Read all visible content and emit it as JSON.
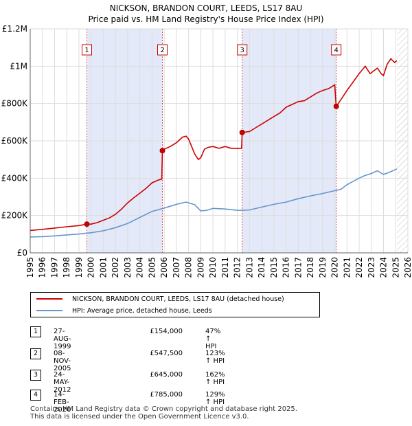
{
  "chart_data": {
    "type": "line",
    "title": "NICKSON, BRANDON COURT, LEEDS, LS17 8AU",
    "subtitle": "Price paid vs. HM Land Registry's House Price Index (HPI)",
    "xlim": [
      1995,
      2026
    ],
    "ylim": [
      0,
      1200000
    ],
    "x_ticks": [
      "1995",
      "1996",
      "1997",
      "1998",
      "1999",
      "2000",
      "2001",
      "2002",
      "2003",
      "2004",
      "2005",
      "2006",
      "2007",
      "2008",
      "2009",
      "2010",
      "2011",
      "2012",
      "2013",
      "2014",
      "2015",
      "2016",
      "2017",
      "2018",
      "2019",
      "2020",
      "2021",
      "2022",
      "2023",
      "2024",
      "2025",
      "2026"
    ],
    "y_ticks": [
      {
        "value": 0,
        "label": "£0"
      },
      {
        "value": 200000,
        "label": "£200K"
      },
      {
        "value": 400000,
        "label": "£400K"
      },
      {
        "value": 600000,
        "label": "£600K"
      },
      {
        "value": 800000,
        "label": "£800K"
      },
      {
        "value": 1000000,
        "label": "£1M"
      },
      {
        "value": 1200000,
        "label": "£1.2M"
      }
    ],
    "grid": true,
    "future_hatch_from": 2025.1,
    "series": [
      {
        "name": "NICKSON, BRANDON COURT, LEEDS, LS17 8AU (detached house)",
        "color": "#cc0000",
        "x": [
          1995.0,
          1996.0,
          1997.0,
          1998.0,
          1999.0,
          1999.65,
          2000.0,
          2000.5,
          2001.0,
          2001.5,
          2002.0,
          2002.5,
          2003.0,
          2003.5,
          2004.0,
          2004.5,
          2005.0,
          2005.5,
          2005.8,
          2005.85,
          2006.0,
          2006.5,
          2007.0,
          2007.5,
          2007.8,
          2008.0,
          2008.5,
          2008.8,
          2009.0,
          2009.3,
          2009.6,
          2010.0,
          2010.5,
          2011.0,
          2011.5,
          2012.0,
          2012.35,
          2012.4,
          2013.0,
          2013.5,
          2014.0,
          2014.5,
          2015.0,
          2015.5,
          2016.0,
          2016.5,
          2017.0,
          2017.5,
          2018.0,
          2018.5,
          2019.0,
          2019.5,
          2020.0,
          2020.1,
          2020.12,
          2020.5,
          2021.0,
          2021.5,
          2022.0,
          2022.5,
          2022.9,
          2023.2,
          2023.5,
          2023.8,
          2024.0,
          2024.3,
          2024.6,
          2024.9,
          2025.1
        ],
        "y": [
          120000,
          126000,
          133000,
          140000,
          146000,
          154000,
          154000,
          162000,
          175000,
          187000,
          207000,
          235000,
          268000,
          295000,
          320000,
          345000,
          375000,
          390000,
          395000,
          547500,
          555000,
          570000,
          590000,
          620000,
          625000,
          610000,
          530000,
          500000,
          510000,
          555000,
          565000,
          570000,
          560000,
          570000,
          560000,
          560000,
          560000,
          645000,
          650000,
          670000,
          690000,
          710000,
          730000,
          750000,
          780000,
          795000,
          810000,
          815000,
          835000,
          855000,
          870000,
          880000,
          900000,
          800000,
          785000,
          820000,
          870000,
          915000,
          960000,
          1000000,
          960000,
          975000,
          990000,
          960000,
          950000,
          1010000,
          1040000,
          1020000,
          1030000
        ]
      },
      {
        "name": "HPI: Average price, detached house, Leeds",
        "color": "#6495cd",
        "x": [
          1995.0,
          1996.0,
          1997.0,
          1998.0,
          1999.0,
          2000.0,
          2001.0,
          2002.0,
          2003.0,
          2004.0,
          2005.0,
          2006.0,
          2007.0,
          2007.8,
          2008.5,
          2009.0,
          2009.5,
          2010.0,
          2011.0,
          2012.0,
          2012.5,
          2013.0,
          2014.0,
          2015.0,
          2016.0,
          2017.0,
          2018.0,
          2019.0,
          2020.0,
          2020.5,
          2021.0,
          2022.0,
          2022.5,
          2023.0,
          2023.5,
          2024.0,
          2024.5,
          2025.1
        ],
        "y": [
          85000,
          87000,
          91000,
          96000,
          101000,
          108000,
          118000,
          135000,
          157000,
          190000,
          222000,
          240000,
          260000,
          272000,
          258000,
          225000,
          228000,
          238000,
          235000,
          228000,
          228000,
          230000,
          245000,
          260000,
          272000,
          290000,
          305000,
          318000,
          333000,
          340000,
          365000,
          400000,
          415000,
          425000,
          440000,
          420000,
          432000,
          450000
        ]
      }
    ],
    "sales": [
      {
        "num": "1",
        "x": 1999.65,
        "price": 154000
      },
      {
        "num": "2",
        "x": 2005.85,
        "price": 547500
      },
      {
        "num": "3",
        "x": 2012.4,
        "price": 645000
      },
      {
        "num": "4",
        "x": 2020.12,
        "price": 785000
      }
    ]
  },
  "legend": [
    {
      "label": "NICKSON, BRANDON COURT, LEEDS, LS17 8AU (detached house)",
      "color": "#cc0000"
    },
    {
      "label": "HPI: Average price, detached house, Leeds",
      "color": "#6495cd"
    }
  ],
  "transactions": [
    {
      "num": "1",
      "date": "27-AUG-1999",
      "price": "£154,000",
      "hpi": "47% ↑ HPI"
    },
    {
      "num": "2",
      "date": "08-NOV-2005",
      "price": "£547,500",
      "hpi": "123% ↑ HPI"
    },
    {
      "num": "3",
      "date": "24-MAY-2012",
      "price": "£645,000",
      "hpi": "162% ↑ HPI"
    },
    {
      "num": "4",
      "date": "14-FEB-2020",
      "price": "£785,000",
      "hpi": "129% ↑ HPI"
    }
  ],
  "footer": {
    "line1": "Contains HM Land Registry data © Crown copyright and database right 2025.",
    "line2": "This data is licensed under the Open Government Licence v3.0."
  }
}
